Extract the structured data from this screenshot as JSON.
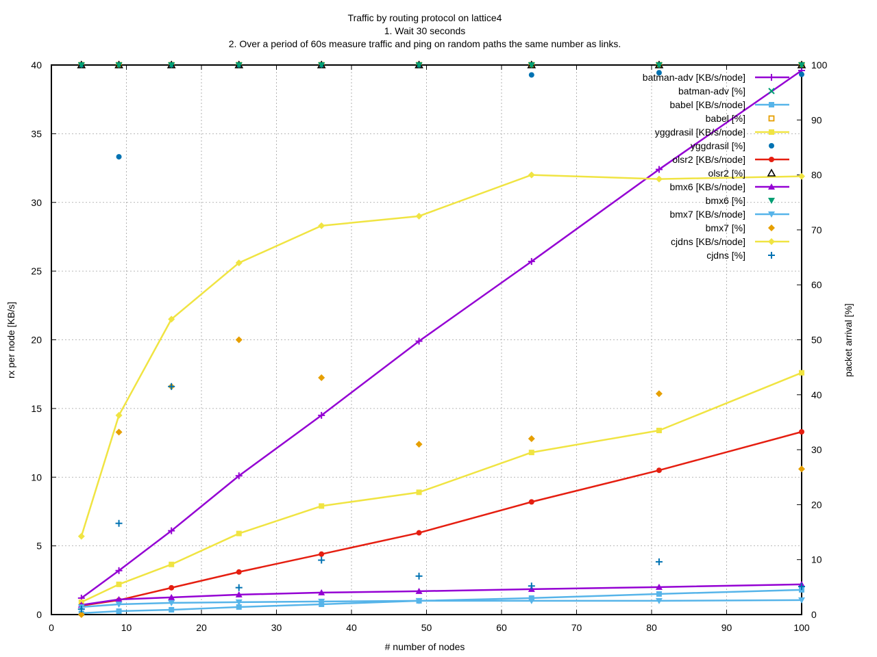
{
  "chart_data": {
    "type": "line",
    "title": [
      "Traffic by routing protocol on lattice4",
      "1. Wait 30 seconds",
      "2. Over a period of 60s measure traffic and ping on random paths the same number as links."
    ],
    "xlabel": "# number of nodes",
    "ylabel": "rx per node [KB/s]",
    "y2label": "packet arrival [%]",
    "xlim": [
      0,
      100
    ],
    "ylim": [
      0,
      40
    ],
    "y2lim": [
      0,
      100
    ],
    "x_ticks": [
      0,
      10,
      20,
      30,
      40,
      50,
      60,
      70,
      80,
      90,
      100
    ],
    "y_ticks": [
      0,
      5,
      10,
      15,
      20,
      25,
      30,
      35,
      40
    ],
    "y2_ticks": [
      0,
      10,
      20,
      30,
      40,
      50,
      60,
      70,
      80,
      90,
      100
    ],
    "grid": true,
    "legend_position": "top-right",
    "x": [
      4,
      9,
      16,
      25,
      36,
      49,
      64,
      81,
      100
    ],
    "series": [
      {
        "name": "batman-adv [KB/s/node]",
        "axis": "y1",
        "style": "linespoints",
        "marker": "plus",
        "color": "#9400d3",
        "values": [
          1.2,
          3.2,
          6.1,
          10.1,
          14.5,
          19.9,
          25.7,
          32.4,
          39.6
        ]
      },
      {
        "name": "batman-adv [%]",
        "axis": "y2",
        "style": "points",
        "marker": "cross",
        "color": "#009e73",
        "values": [
          100,
          100,
          100,
          100,
          100,
          100,
          100,
          100,
          100
        ]
      },
      {
        "name": "babel [KB/s/node]",
        "axis": "y1",
        "style": "linespoints",
        "marker": "square",
        "color": "#56b4e9",
        "values": [
          0.1,
          0.25,
          0.35,
          0.55,
          0.75,
          1.0,
          1.2,
          1.5,
          1.8
        ]
      },
      {
        "name": "babel [%]",
        "axis": "y2",
        "style": "points",
        "marker": "open-square",
        "color": "#e69f00",
        "values": [
          100,
          100,
          100,
          100,
          100,
          100,
          100,
          100,
          100
        ]
      },
      {
        "name": "yggdrasil [KB/s/node]",
        "axis": "y1",
        "style": "linespoints",
        "marker": "square",
        "color": "#f0e442",
        "values": [
          0.9,
          2.2,
          3.65,
          5.9,
          7.9,
          8.9,
          11.8,
          13.4,
          17.6
        ]
      },
      {
        "name": "yggdrasil [%]",
        "axis": "y2",
        "style": "points",
        "marker": "circle",
        "color": "#0072b2",
        "values": [
          100,
          83.3,
          100,
          100,
          100,
          100,
          98.2,
          98.6,
          98.3
        ]
      },
      {
        "name": "olsr2 [KB/s/node]",
        "axis": "y1",
        "style": "linespoints",
        "marker": "circle",
        "color": "#e51e10",
        "values": [
          0.65,
          1.05,
          1.95,
          3.1,
          4.4,
          5.95,
          8.2,
          10.5,
          13.3
        ]
      },
      {
        "name": "olsr2 [%]",
        "axis": "y2",
        "style": "points",
        "marker": "open-triangle",
        "color": "#000000",
        "values": [
          100,
          100,
          100,
          100,
          100,
          100,
          100,
          100,
          100
        ]
      },
      {
        "name": "bmx6 [KB/s/node]",
        "axis": "y1",
        "style": "linespoints",
        "marker": "triangle",
        "color": "#9400d3",
        "values": [
          0.7,
          1.1,
          1.25,
          1.45,
          1.6,
          1.7,
          1.85,
          2.0,
          2.2
        ]
      },
      {
        "name": "bmx6 [%]",
        "axis": "y2",
        "style": "points",
        "marker": "triangle-down",
        "color": "#009e73",
        "values": [
          100,
          100,
          100,
          100,
          100,
          100,
          100,
          100,
          100
        ]
      },
      {
        "name": "bmx7 [KB/s/node]",
        "axis": "y1",
        "style": "linespoints",
        "marker": "triangle-down",
        "color": "#56b4e9",
        "values": [
          0.55,
          0.75,
          0.85,
          0.9,
          0.95,
          1.0,
          1.0,
          1.0,
          1.05
        ]
      },
      {
        "name": "bmx7 [%]",
        "axis": "y2",
        "style": "points",
        "marker": "diamond",
        "color": "#e69f00",
        "values": [
          0,
          33.2,
          41.5,
          50,
          43.1,
          31,
          32,
          40.2,
          26.5
        ]
      },
      {
        "name": "cjdns [KB/s/node]",
        "axis": "y1",
        "style": "linespoints",
        "marker": "diamond",
        "color": "#f0e442",
        "values": [
          5.7,
          14.5,
          21.5,
          25.6,
          28.3,
          29.0,
          32.0,
          31.7,
          31.9
        ]
      },
      {
        "name": "cjdns [%]",
        "axis": "y2",
        "style": "points",
        "marker": "plus",
        "color": "#0072b2",
        "values": [
          1,
          16.6,
          41.5,
          4.9,
          9.9,
          7.0,
          5.2,
          9.6,
          5.1
        ]
      }
    ]
  }
}
